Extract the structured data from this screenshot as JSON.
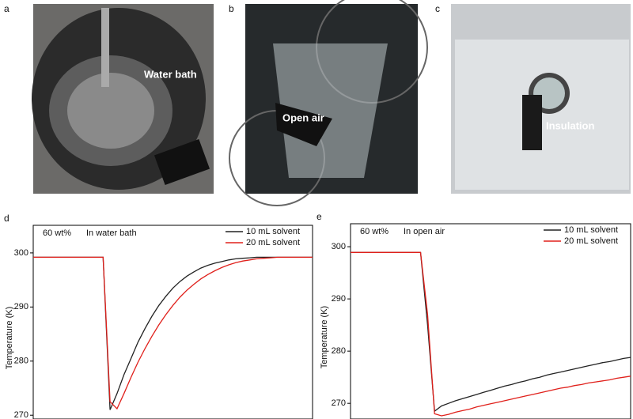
{
  "panels": [
    {
      "label": "a",
      "annotation": "Water bath"
    },
    {
      "label": "b",
      "annotation": "Open air"
    },
    {
      "label": "c",
      "annotation": "Insulation"
    }
  ],
  "chart_data": [
    {
      "type": "line",
      "panel_label": "d",
      "notes": [
        "60 wt%",
        "In water bath"
      ],
      "y_label": "Temperature (K)",
      "ylim": [
        269.3,
        305.1
      ],
      "yticks": [
        270,
        280,
        290,
        300
      ],
      "series": [
        {
          "name": "10 mL solvent",
          "color": "#222222",
          "values": [
            299.2,
            299.2,
            299.2,
            299.2,
            299.2,
            299.2,
            299.2,
            299.2,
            299.2,
            299.2,
            299.2,
            271,
            274,
            277.5,
            280.5,
            283.5,
            286,
            288.3,
            290.3,
            292,
            293.5,
            294.7,
            295.7,
            296.5,
            297.2,
            297.7,
            298.1,
            298.4,
            298.7,
            298.9,
            299.0,
            299.1,
            299.2,
            299.2,
            299.2,
            299.2,
            299.2,
            299.2,
            299.2,
            299.2,
            299.2
          ]
        },
        {
          "name": "20 mL solvent",
          "color": "#e0201b",
          "values": [
            299.2,
            299.2,
            299.2,
            299.2,
            299.2,
            299.2,
            299.2,
            299.2,
            299.2,
            299.2,
            299.2,
            272.5,
            271.2,
            274,
            277,
            279.8,
            282.3,
            284.6,
            286.7,
            288.6,
            290.3,
            291.8,
            293.1,
            294.2,
            295.2,
            296,
            296.7,
            297.3,
            297.8,
            298.2,
            298.5,
            298.7,
            298.9,
            299.0,
            299.1,
            299.2,
            299.2,
            299.2,
            299.2,
            299.2,
            299.2
          ]
        }
      ]
    },
    {
      "type": "line",
      "panel_label": "e",
      "notes": [
        "60 wt%",
        "In open air"
      ],
      "y_label": "Temperature (K)",
      "ylim": [
        267,
        304.4
      ],
      "yticks": [
        270,
        280,
        290,
        300
      ],
      "series": [
        {
          "name": "10 mL solvent",
          "color": "#222222",
          "values": [
            298.9,
            298.9,
            298.9,
            298.9,
            298.9,
            298.9,
            298.9,
            298.9,
            298.9,
            298.9,
            298.9,
            285,
            268.5,
            269.5,
            270.0,
            270.5,
            270.9,
            271.3,
            271.7,
            272.1,
            272.5,
            272.9,
            273.3,
            273.6,
            274.0,
            274.3,
            274.7,
            275.0,
            275.4,
            275.7,
            276.0,
            276.3,
            276.6,
            276.9,
            277.2,
            277.5,
            277.8,
            278.0,
            278.3,
            278.6,
            278.8
          ]
        },
        {
          "name": "20 mL solvent",
          "color": "#e0201b",
          "values": [
            298.9,
            298.9,
            298.9,
            298.9,
            298.9,
            298.9,
            298.9,
            298.9,
            298.9,
            298.9,
            298.9,
            287,
            268,
            267.6,
            267.9,
            268.3,
            268.6,
            268.9,
            269.3,
            269.6,
            269.9,
            270.2,
            270.5,
            270.8,
            271.1,
            271.4,
            271.7,
            272.0,
            272.3,
            272.6,
            272.9,
            273.1,
            273.4,
            273.6,
            273.9,
            274.1,
            274.3,
            274.5,
            274.8,
            275.0,
            275.2
          ]
        }
      ]
    }
  ]
}
